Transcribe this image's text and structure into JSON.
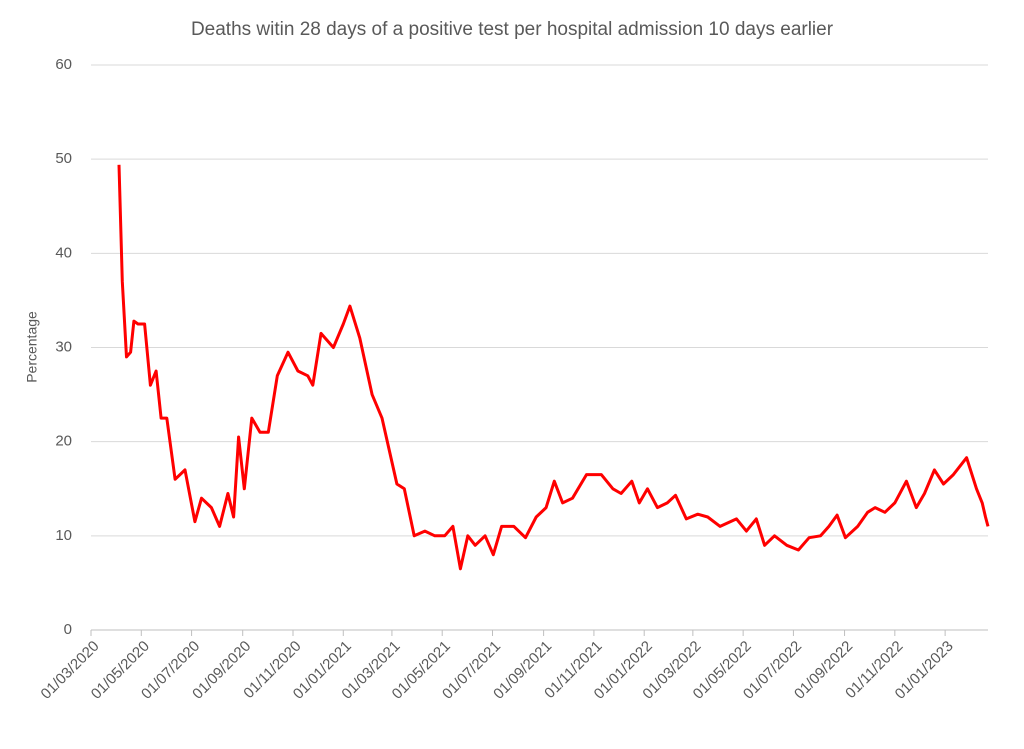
{
  "chart_data": {
    "type": "line",
    "title": "Deaths witin 28 days of a positive test per hospital admission 10 days earlier",
    "ylabel": "Percentage",
    "color": "#ff0000",
    "grid": true,
    "ylim": [
      0,
      60
    ],
    "yticks": [
      0,
      10,
      20,
      30,
      40,
      50,
      60
    ],
    "xlim": [
      "01/03/2020",
      "22/02/2023"
    ],
    "xticks": [
      "01/03/2020",
      "01/05/2020",
      "01/07/2020",
      "01/09/2020",
      "01/11/2020",
      "01/01/2021",
      "01/03/2021",
      "01/05/2021",
      "01/07/2021",
      "01/09/2021",
      "01/11/2021",
      "01/01/2022",
      "01/03/2022",
      "01/05/2022",
      "01/07/2022",
      "01/09/2022",
      "01/11/2022",
      "01/01/2023"
    ],
    "x": [
      "04/04/2020",
      "08/04/2020",
      "13/04/2020",
      "18/04/2020",
      "22/04/2020",
      "27/04/2020",
      "05/05/2020",
      "12/05/2020",
      "19/05/2020",
      "25/05/2020",
      "01/06/2020",
      "11/06/2020",
      "23/06/2020",
      "05/07/2020",
      "13/07/2020",
      "25/07/2020",
      "04/08/2020",
      "14/08/2020",
      "21/08/2020",
      "27/08/2020",
      "03/09/2020",
      "12/09/2020",
      "22/09/2020",
      "02/10/2020",
      "13/10/2020",
      "26/10/2020",
      "07/11/2020",
      "19/11/2020",
      "25/11/2020",
      "05/12/2020",
      "20/12/2020",
      "01/01/2021",
      "09/01/2021",
      "21/01/2021",
      "05/02/2021",
      "17/02/2021",
      "07/03/2021",
      "16/03/2021",
      "28/03/2021",
      "10/04/2021",
      "22/04/2021",
      "04/05/2021",
      "14/05/2021",
      "23/05/2021",
      "01/06/2021",
      "10/06/2021",
      "22/06/2021",
      "02/07/2021",
      "12/07/2021",
      "27/07/2021",
      "10/08/2021",
      "23/08/2021",
      "04/09/2021",
      "14/09/2021",
      "24/09/2021",
      "06/10/2021",
      "23/10/2021",
      "10/11/2021",
      "24/11/2021",
      "04/12/2021",
      "17/12/2021",
      "26/12/2021",
      "05/01/2022",
      "17/01/2022",
      "29/01/2022",
      "08/02/2022",
      "21/02/2022",
      "07/03/2022",
      "19/03/2022",
      "03/04/2022",
      "23/04/2022",
      "05/05/2022",
      "17/05/2022",
      "27/05/2022",
      "08/06/2022",
      "23/06/2022",
      "07/07/2022",
      "20/07/2022",
      "03/08/2022",
      "13/08/2022",
      "23/08/2022",
      "02/09/2022",
      "17/09/2022",
      "29/09/2022",
      "08/10/2022",
      "20/10/2022",
      "01/11/2022",
      "15/11/2022",
      "27/11/2022",
      "07/12/2022",
      "19/12/2022",
      "30/12/2022",
      "11/01/2023",
      "27/01/2023",
      "08/02/2023",
      "15/02/2023",
      "19/02/2023",
      "22/02/2023"
    ],
    "values": [
      49.4,
      37,
      29,
      29.5,
      32.8,
      32.5,
      32.5,
      26,
      27.5,
      22.5,
      22.5,
      16,
      17,
      11.5,
      14,
      13,
      11,
      14.5,
      12,
      20.5,
      15,
      22.5,
      21,
      21,
      27,
      29.5,
      27.5,
      27,
      26,
      31.5,
      30,
      32.5,
      34.4,
      31,
      25,
      22.5,
      15.5,
      15,
      10,
      10.5,
      10,
      10,
      11,
      6.5,
      10,
      9,
      10,
      8,
      11,
      11,
      9.8,
      12,
      13,
      15.8,
      13.5,
      14,
      16.5,
      16.5,
      15,
      14.5,
      15.8,
      13.5,
      15,
      13,
      13.5,
      14.3,
      11.8,
      12.3,
      12,
      11,
      11.8,
      10.5,
      11.8,
      9,
      10,
      9,
      8.5,
      9.8,
      10,
      11,
      12.2,
      9.8,
      11,
      12.5,
      13,
      12.5,
      13.5,
      15.8,
      13,
      14.5,
      17,
      15.5,
      16.5,
      18.3,
      15,
      13.5,
      12,
      11
    ]
  }
}
